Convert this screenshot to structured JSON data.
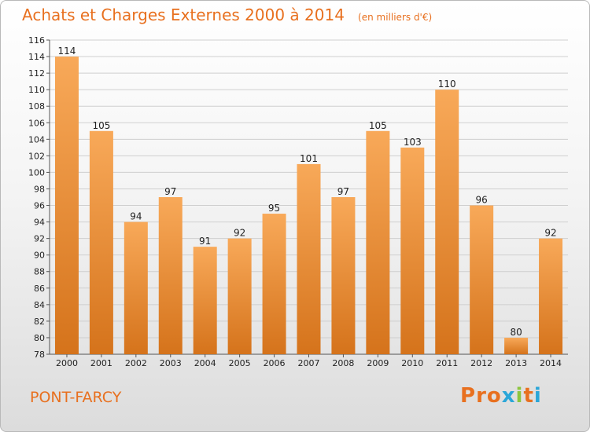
{
  "header": {
    "title": "Achats et Charges Externes 2000 à 2014",
    "unit": "(en milliers d'€)"
  },
  "footer": {
    "commune": "PONT-FARCY",
    "logo": "Proxiti",
    "logo_colors": [
      "#e8701f",
      "#e8701f",
      "#e8701f",
      "#2aa6d8",
      "#8cc63f",
      "#e8701f",
      "#2aa6d8"
    ]
  },
  "colors": {
    "accent": "#e8701f",
    "bar_light": "#f8a959",
    "bar_dark": "#d5731b",
    "grid": "#cfcfcf"
  },
  "chart_data": {
    "type": "bar",
    "title": "Achats et Charges Externes 2000 à 2014",
    "subtitle": "(en milliers d'€)",
    "categories": [
      "2000",
      "2001",
      "2002",
      "2003",
      "2004",
      "2005",
      "2006",
      "2007",
      "2008",
      "2009",
      "2010",
      "2011",
      "2012",
      "2013",
      "2014"
    ],
    "values": [
      114,
      105,
      94,
      97,
      91,
      92,
      95,
      101,
      97,
      105,
      103,
      110,
      96,
      80,
      92
    ],
    "ylim": [
      78,
      116
    ],
    "yticks": [
      78,
      80,
      82,
      84,
      86,
      88,
      90,
      92,
      94,
      96,
      98,
      100,
      102,
      104,
      106,
      108,
      110,
      112,
      114,
      116
    ],
    "grid": true,
    "legend": "none"
  }
}
